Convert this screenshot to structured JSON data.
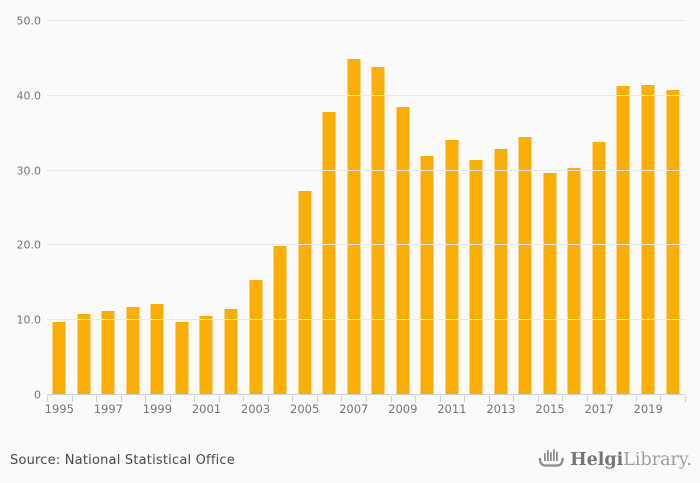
{
  "chart_data": {
    "type": "bar",
    "title": "",
    "categories": [
      1995,
      1996,
      1997,
      1998,
      1999,
      2000,
      2001,
      2002,
      2003,
      2004,
      2005,
      2006,
      2007,
      2008,
      2009,
      2010,
      2011,
      2012,
      2013,
      2014,
      2015,
      2016,
      2017,
      2018,
      2019,
      2020
    ],
    "values": [
      9.8,
      10.8,
      11.2,
      11.7,
      12.2,
      9.7,
      10.5,
      11.5,
      15.4,
      19.9,
      27.3,
      37.9,
      44.9,
      43.8,
      38.5,
      31.9,
      34.1,
      31.4,
      32.9,
      34.5,
      29.7,
      30.3,
      33.8,
      41.3,
      41.4,
      40.8
    ],
    "xlabel": "",
    "ylabel": "",
    "ylim": [
      0,
      50
    ],
    "y_ticks": [
      {
        "value": 0,
        "label": "0"
      },
      {
        "value": 10,
        "label": "10.0"
      },
      {
        "value": 20,
        "label": "20.0"
      },
      {
        "value": 30,
        "label": "30.0"
      },
      {
        "value": 40,
        "label": "40.0"
      },
      {
        "value": 50,
        "label": "50.0"
      }
    ],
    "x_labels_shown": [
      "1995",
      "1997",
      "1999",
      "2001",
      "2003",
      "2005",
      "2007",
      "2009",
      "2011",
      "2013",
      "2015",
      "2017",
      "2019"
    ],
    "grid": true,
    "legend_position": "none",
    "bar_color": "#F9AE08",
    "gridline_color": "#E9E9E9",
    "axis_line_color": "#C9D2DC",
    "tick_label_color": "#757575",
    "background_color": "#FAFAFA"
  },
  "footer": {
    "source_label": "Source: National Statistical Office"
  },
  "brand": {
    "name_bold": "Helgi",
    "name_light": "Library.",
    "icon": "viking-ship-bar-chart-icon"
  }
}
